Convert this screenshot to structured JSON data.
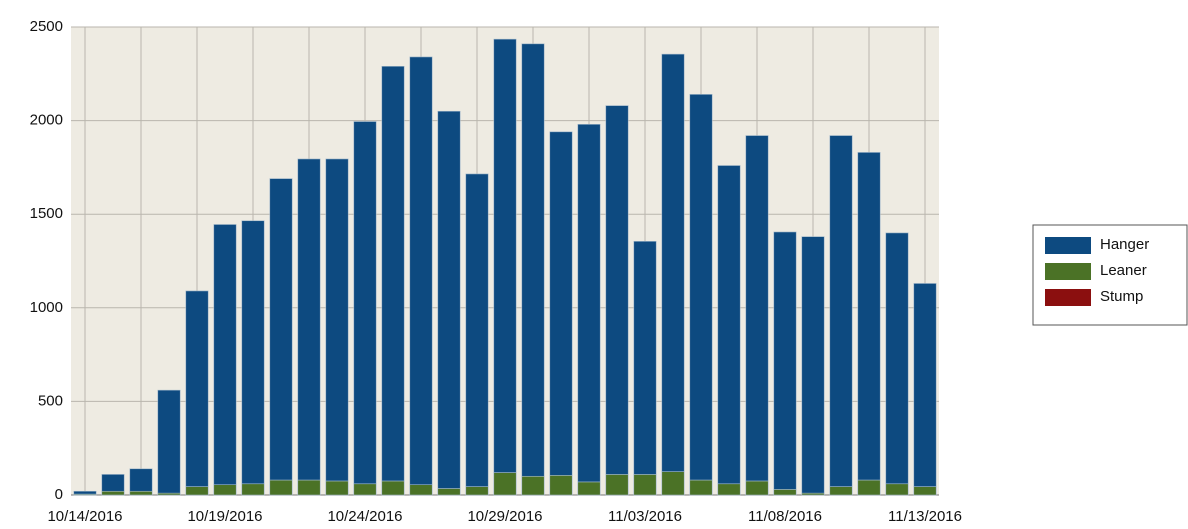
{
  "chart_data": {
    "type": "stacked_bar",
    "categories": [
      "10/14/2016",
      null,
      null,
      null,
      null,
      "10/19/2016",
      null,
      null,
      null,
      null,
      "10/24/2016",
      null,
      null,
      null,
      null,
      "10/29/2016",
      null,
      null,
      null,
      null,
      "11/03/2016",
      null,
      null,
      null,
      null,
      "11/08/2016",
      null,
      null,
      null,
      null,
      "11/13/2016"
    ],
    "series": [
      {
        "name": "Stump",
        "color": "#8b0f0f",
        "values": [
          0,
          0,
          0,
          0,
          0,
          0,
          0,
          0,
          0,
          0,
          0,
          0,
          0,
          0,
          0,
          0,
          0,
          0,
          0,
          0,
          0,
          0,
          0,
          0,
          0,
          0,
          0,
          0,
          0,
          0,
          0
        ]
      },
      {
        "name": "Leaner",
        "color": "#4b7226",
        "values": [
          5,
          20,
          20,
          10,
          45,
          55,
          60,
          80,
          80,
          75,
          60,
          75,
          55,
          35,
          45,
          120,
          100,
          105,
          70,
          110,
          110,
          125,
          80,
          60,
          75,
          30,
          10,
          45,
          80,
          60,
          45
        ]
      },
      {
        "name": "Hanger",
        "color": "#0d4a80",
        "values": [
          15,
          90,
          120,
          550,
          1045,
          1390,
          1405,
          1610,
          1715,
          1720,
          1935,
          2215,
          2285,
          2015,
          1670,
          2315,
          2310,
          1835,
          1910,
          1970,
          1245,
          2230,
          2060,
          1700,
          1845,
          1375,
          1370,
          1875,
          1750,
          1340,
          1085
        ]
      }
    ],
    "ylim": [
      0,
      2500
    ],
    "yticks": [
      0,
      500,
      1000,
      1500,
      2000,
      2500
    ],
    "grid": true,
    "legend": "right"
  }
}
